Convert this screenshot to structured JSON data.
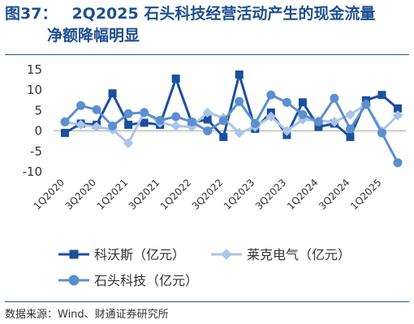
{
  "figure_label": "图37：",
  "title_line1": "2Q2025 石头科技经营活动产生的现金流量",
  "title_line2": "净额降幅明显",
  "source": "数据来源：Wind、财通证券研究所",
  "colors": {
    "kewosi": "#1a4f9c",
    "laike": "#aac4ea",
    "shitou": "#5b8fd0",
    "title": "#1f4f8f"
  },
  "chart_data": {
    "type": "line",
    "categories": [
      "1Q2020",
      "2Q2020",
      "3Q2020",
      "4Q2020",
      "1Q2021",
      "2Q2021",
      "3Q2021",
      "4Q2021",
      "1Q2022",
      "2Q2022",
      "3Q2022",
      "4Q2022",
      "1Q2023",
      "2Q2023",
      "3Q2023",
      "4Q2023",
      "1Q2024",
      "2Q2024",
      "3Q2024",
      "4Q2024",
      "1Q2025",
      "2Q2025"
    ],
    "x_tick_labels": [
      "1Q2020",
      "3Q2020",
      "1Q2021",
      "3Q2021",
      "1Q2022",
      "3Q2022",
      "1Q2023",
      "3Q2023",
      "1Q2024",
      "3Q2024",
      "1Q2025"
    ],
    "ylim": [
      -10,
      15
    ],
    "yticks": [
      -10,
      -5,
      0,
      5,
      10,
      15
    ],
    "legend_position": "bottom",
    "series": [
      {
        "name": "科沃斯（亿元）",
        "marker": "square",
        "values": [
          -0.5,
          1.8,
          1.5,
          9.2,
          1.5,
          2.0,
          1.5,
          12.8,
          2.0,
          2.8,
          -1.5,
          13.8,
          0.5,
          4.5,
          -1.0,
          7.0,
          1.0,
          1.8,
          -1.5,
          7.5,
          8.8,
          5.5
        ]
      },
      {
        "name": "莱克电气（亿元）",
        "marker": "diamond",
        "values": [
          2.2,
          1.5,
          1.0,
          0.3,
          -3.0,
          4.5,
          2.0,
          1.2,
          1.0,
          4.5,
          3.2,
          -0.5,
          1.0,
          3.5,
          0.0,
          2.8,
          2.5,
          2.2,
          4.0,
          6.5,
          0.0,
          3.8
        ]
      },
      {
        "name": "石头科技（亿元）",
        "marker": "circle",
        "values": [
          2.2,
          6.2,
          5.2,
          1.2,
          4.2,
          4.5,
          2.6,
          3.5,
          2.2,
          0.0,
          2.5,
          7.2,
          1.8,
          8.8,
          7.0,
          4.0,
          2.2,
          8.0,
          0.5,
          6.5,
          -0.5,
          -7.8
        ]
      }
    ]
  }
}
